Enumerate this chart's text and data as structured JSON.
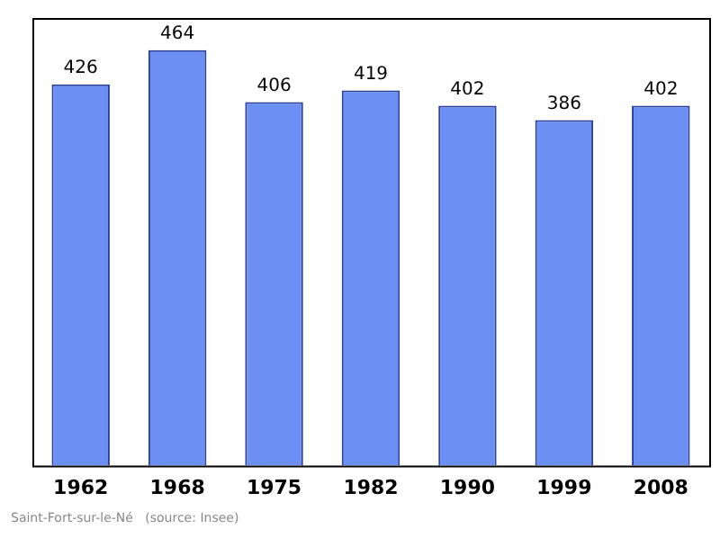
{
  "chart_data": {
    "type": "bar",
    "categories": [
      "1962",
      "1968",
      "1975",
      "1982",
      "1990",
      "1999",
      "2008"
    ],
    "values": [
      426,
      464,
      406,
      419,
      402,
      386,
      402
    ],
    "color": "#6b8ff2",
    "data_labels": true,
    "grid": false,
    "legend": false,
    "annotations": [
      "Saint-Fort-sur-le-Né   (source: Insee)"
    ]
  }
}
